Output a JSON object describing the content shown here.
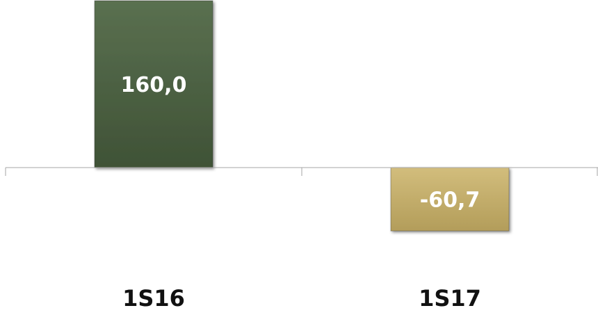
{
  "chart_data": {
    "type": "bar",
    "categories": [
      "1S16",
      "1S17"
    ],
    "values": [
      160.0,
      -60.7
    ],
    "data_labels": [
      "160,0",
      "-60,7"
    ],
    "colors": [
      "#4a5e3f",
      "#c3ad69"
    ],
    "title": "",
    "xlabel": "",
    "ylabel": "",
    "grid": false,
    "legend": "none"
  }
}
